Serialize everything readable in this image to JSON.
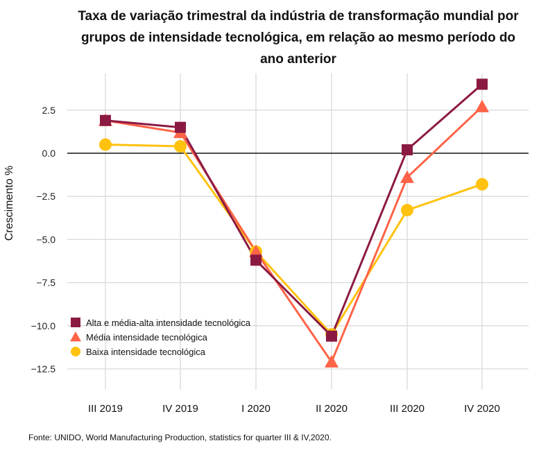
{
  "chart_data": {
    "type": "line",
    "title_lines": [
      "Taxa de variação trimestral da indústria de transformação mundial por",
      "grupos de intensidade tecnológica, em relação ao mesmo período do",
      "ano anterior"
    ],
    "ylabel": "Crescimento %",
    "categories": [
      "III 2019",
      "IV 2019",
      "I 2020",
      "II 2020",
      "III 2020",
      "IV 2020"
    ],
    "y_ticks": [
      2.5,
      0.0,
      -2.5,
      -5.0,
      -7.5,
      -10.0,
      -12.5
    ],
    "y_tick_labels": [
      "2.5",
      "0.0",
      "−2.5",
      "−5.0",
      "−7.5",
      "−10.0",
      "−12.5"
    ],
    "ylim": [
      -13.5,
      4.2
    ],
    "grid": true,
    "legend_position": "bottom-left",
    "series": [
      {
        "name": "Alta e média-alta intensidade tecnológica",
        "marker": "square",
        "color": "#8b1a43",
        "values": [
          1.9,
          1.5,
          -6.2,
          -10.6,
          0.2,
          4.0
        ]
      },
      {
        "name": "Média intensidade tecnológica",
        "marker": "triangle",
        "color": "#ff6347",
        "values": [
          1.9,
          1.2,
          -5.7,
          -12.1,
          -1.4,
          2.7
        ]
      },
      {
        "name": "Baixa intensidade tecnológica",
        "marker": "circle",
        "color": "#ffc20e",
        "values": [
          0.5,
          0.4,
          -5.7,
          -10.5,
          -3.3,
          -1.8
        ]
      }
    ]
  },
  "source": "Fonte: UNIDO, World Manufacturing Production, statistics for quarter III & IV,2020."
}
